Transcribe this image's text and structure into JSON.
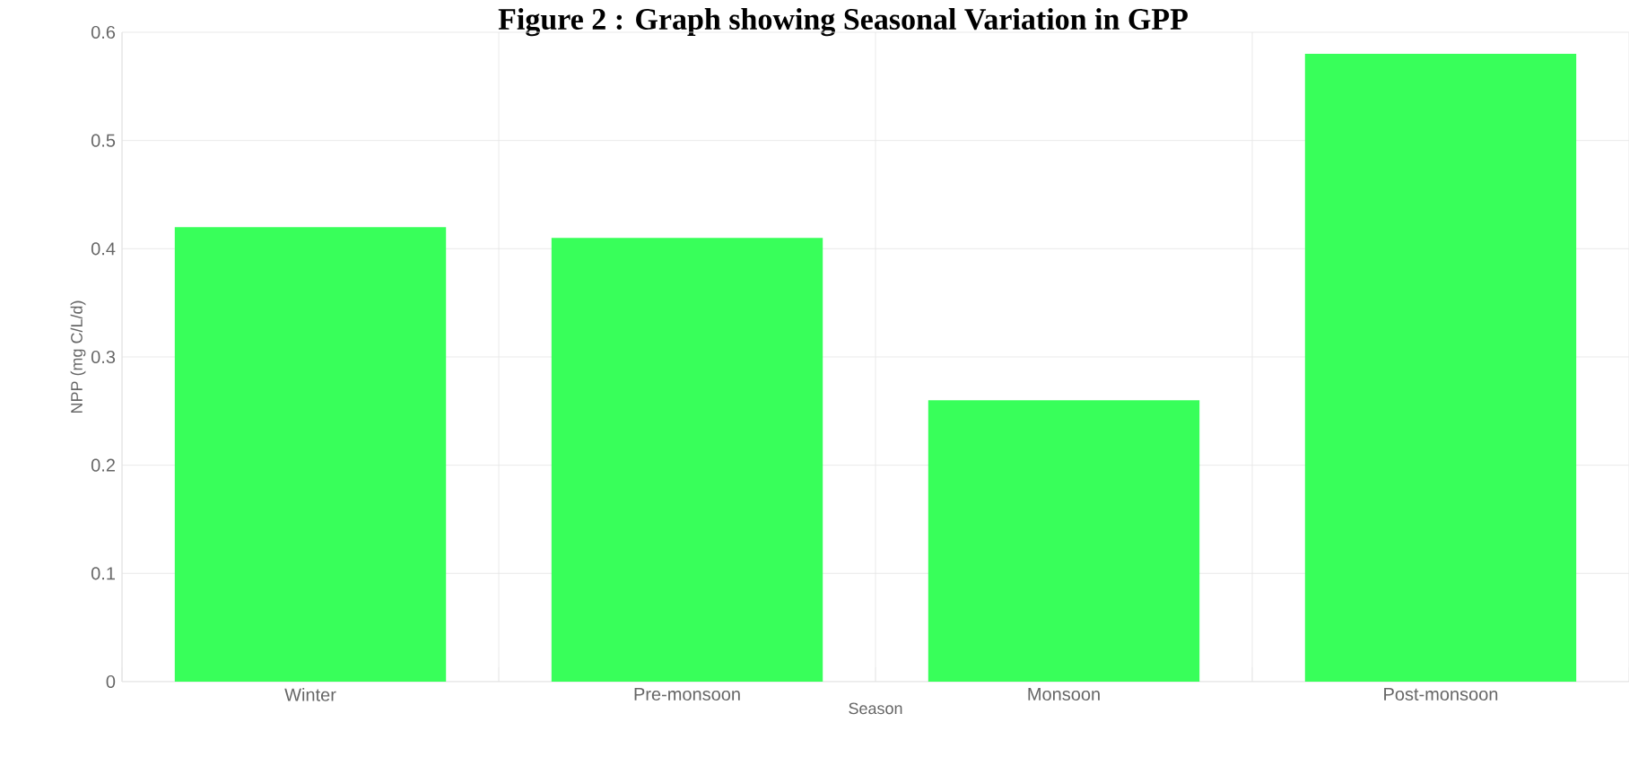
{
  "chart_data": {
    "type": "bar",
    "title": "Figure 2 : Graph showing Seasonal Variation in GPP",
    "xlabel": "Season",
    "ylabel": "NPP (mg C/L/d)",
    "categories": [
      "Winter",
      "Pre-monsoon",
      "Monsoon",
      "Post-monsoon"
    ],
    "values": [
      0.42,
      0.41,
      0.26,
      0.58
    ],
    "color": "#38ff5a",
    "ylim": [
      0,
      0.6
    ],
    "yticks": [
      0,
      0.1,
      0.2,
      0.3,
      0.4,
      0.5,
      0.6
    ],
    "grid": true
  }
}
